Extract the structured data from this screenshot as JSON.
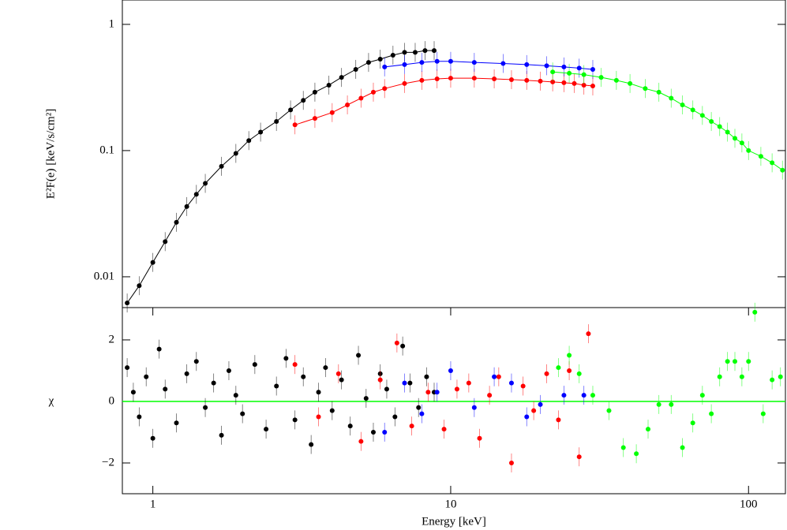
{
  "chart_data": [
    {
      "type": "scatter",
      "ylabel": "E²F(e) [keV/s/cm²]",
      "xscale": "log",
      "yscale": "log",
      "xlim": [
        0.79,
        133
      ],
      "ylim": [
        0.0057,
        1.56
      ],
      "yticks": [
        0.01,
        0.1,
        1
      ],
      "series": [
        {
          "color": "#000000",
          "x": [
            0.82,
            0.9,
            1.0,
            1.1,
            1.2,
            1.3,
            1.4,
            1.5,
            1.7,
            1.9,
            2.1,
            2.3,
            2.6,
            2.9,
            3.2,
            3.5,
            3.9,
            4.3,
            4.8,
            5.3,
            5.8,
            6.4,
            7.0,
            7.6,
            8.2,
            8.8
          ],
          "values": [
            0.0062,
            0.0085,
            0.013,
            0.019,
            0.027,
            0.036,
            0.045,
            0.055,
            0.075,
            0.095,
            0.12,
            0.14,
            0.17,
            0.21,
            0.25,
            0.29,
            0.33,
            0.38,
            0.44,
            0.5,
            0.53,
            0.57,
            0.6,
            0.6,
            0.62,
            0.62
          ]
        },
        {
          "color": "#ff0000",
          "x": [
            3.0,
            3.5,
            4.0,
            4.5,
            5.0,
            5.5,
            6.0,
            7.0,
            8.0,
            9.0,
            10,
            12,
            14,
            16,
            18,
            20,
            22,
            24,
            26,
            28,
            30
          ],
          "values": [
            0.16,
            0.18,
            0.2,
            0.23,
            0.26,
            0.29,
            0.31,
            0.34,
            0.36,
            0.37,
            0.375,
            0.375,
            0.37,
            0.365,
            0.36,
            0.355,
            0.35,
            0.345,
            0.34,
            0.33,
            0.325
          ]
        },
        {
          "color": "#0000ff",
          "x": [
            6,
            7,
            8,
            9,
            10,
            12,
            15,
            18,
            21,
            24,
            27,
            30
          ],
          "values": [
            0.46,
            0.48,
            0.5,
            0.51,
            0.51,
            0.5,
            0.49,
            0.48,
            0.47,
            0.46,
            0.45,
            0.44
          ]
        },
        {
          "color": "#00ff00",
          "x": [
            22,
            25,
            28,
            32,
            36,
            40,
            45,
            50,
            55,
            60,
            65,
            70,
            75,
            80,
            85,
            90,
            95,
            100,
            110,
            120,
            130
          ],
          "values": [
            0.42,
            0.41,
            0.4,
            0.38,
            0.36,
            0.34,
            0.31,
            0.29,
            0.26,
            0.23,
            0.21,
            0.19,
            0.17,
            0.155,
            0.14,
            0.125,
            0.115,
            0.1,
            0.09,
            0.08,
            0.07
          ]
        }
      ]
    },
    {
      "type": "scatter",
      "xlabel": "Energy [keV]",
      "ylabel": "χ",
      "xscale": "log",
      "xlim": [
        0.79,
        133
      ],
      "ylim": [
        -3,
        3.05
      ],
      "xticks": [
        1,
        10,
        100
      ],
      "yticks": [
        {
          "value": -2,
          "label": "−2"
        },
        0,
        2
      ],
      "reference_line": 0,
      "reference_color": "#00ff00",
      "series": [
        {
          "color": "#000000",
          "x": [
            0.82,
            0.86,
            0.9,
            0.95,
            1.0,
            1.05,
            1.1,
            1.2,
            1.3,
            1.4,
            1.5,
            1.6,
            1.7,
            1.8,
            1.9,
            2.0,
            2.2,
            2.4,
            2.6,
            2.8,
            3.0,
            3.2,
            3.4,
            3.6,
            3.8,
            4.0,
            4.3,
            4.6,
            4.9,
            5.2,
            5.5,
            5.8,
            6.1,
            6.5,
            6.9,
            7.3,
            7.8,
            8.3,
            8.8
          ],
          "values": [
            1.1,
            0.3,
            -0.5,
            0.8,
            -1.2,
            1.7,
            0.4,
            -0.7,
            0.9,
            1.3,
            -0.2,
            0.6,
            -1.1,
            1.0,
            0.2,
            -0.4,
            1.2,
            -0.9,
            0.5,
            1.4,
            -0.6,
            0.8,
            -1.4,
            0.3,
            1.1,
            -0.3,
            0.7,
            -0.8,
            1.5,
            0.1,
            -1.0,
            0.9,
            0.4,
            -0.5,
            1.8,
            0.6,
            -0.2,
            0.8,
            0.3
          ]
        },
        {
          "color": "#ff0000",
          "x": [
            3.0,
            3.6,
            4.2,
            5.0,
            5.8,
            6.6,
            7.4,
            8.4,
            9.5,
            10.5,
            11.5,
            12.5,
            13.5,
            14.5,
            16,
            17.5,
            19,
            21,
            23,
            25,
            27,
            29
          ],
          "values": [
            1.2,
            -0.5,
            0.9,
            -1.3,
            0.7,
            1.9,
            -0.8,
            0.3,
            -0.9,
            0.4,
            0.6,
            -1.2,
            0.2,
            0.8,
            -2.0,
            0.5,
            -0.3,
            0.9,
            -0.6,
            1.0,
            -1.8,
            2.2
          ]
        },
        {
          "color": "#0000ff",
          "x": [
            6,
            7,
            8,
            9,
            10,
            12,
            14,
            16,
            18,
            20,
            24,
            28
          ],
          "values": [
            -1.0,
            0.6,
            -0.4,
            0.3,
            1.0,
            -0.2,
            0.8,
            0.6,
            -0.5,
            -0.1,
            0.2,
            0.2
          ]
        },
        {
          "color": "#00ff00",
          "x": [
            23,
            25,
            27,
            30,
            34,
            38,
            42,
            46,
            50,
            55,
            60,
            65,
            70,
            75,
            80,
            85,
            90,
            95,
            100,
            105,
            112,
            120,
            128
          ],
          "values": [
            1.1,
            1.5,
            0.9,
            0.2,
            -0.3,
            -1.5,
            -1.7,
            -0.9,
            -0.1,
            -0.1,
            -1.5,
            -0.7,
            0.2,
            -0.4,
            0.8,
            1.3,
            1.3,
            0.8,
            1.3,
            2.9,
            -0.4,
            0.7,
            0.8
          ]
        }
      ]
    }
  ]
}
